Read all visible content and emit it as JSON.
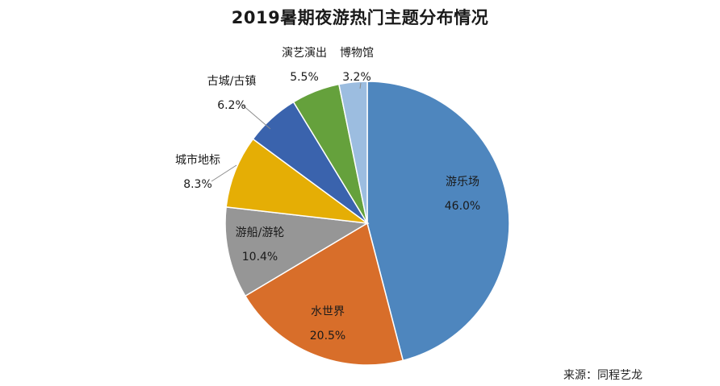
{
  "chart_data": {
    "type": "pie",
    "title": "2019暑期夜游热门主题分布情况",
    "slices": [
      {
        "label": "游乐场",
        "value": 46.0,
        "display": "46.0%",
        "color": "#4e86be"
      },
      {
        "label": "水世界",
        "value": 20.5,
        "display": "20.5%",
        "color": "#d86e2a"
      },
      {
        "label": "游船/游轮",
        "value": 10.4,
        "display": "10.4%",
        "color": "#969696"
      },
      {
        "label": "城市地标",
        "value": 8.3,
        "display": "8.3%",
        "color": "#e5ae05"
      },
      {
        "label": "古城/古镇",
        "value": 6.2,
        "display": "6.2%",
        "color": "#3a63ad"
      },
      {
        "label": "演艺演出",
        "value": 5.5,
        "display": "5.5%",
        "color": "#65a13c"
      },
      {
        "label": "博物馆",
        "value": 3.2,
        "display": "3.2%",
        "color": "#9cbde0"
      }
    ],
    "source": "来源：同程艺龙"
  }
}
